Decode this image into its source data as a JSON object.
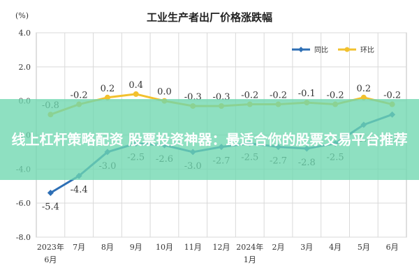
{
  "chart_data": {
    "type": "line",
    "title": "工业生产者出厂价格涨跌幅",
    "unit_label": "(%)",
    "categories": [
      "2023年6月",
      "7月",
      "8月",
      "9月",
      "10月",
      "11月",
      "12月",
      "2024年1月",
      "2月",
      "3月",
      "4月",
      "5月",
      "6月"
    ],
    "category_lines": [
      [
        "2023年",
        "6月"
      ],
      [
        "7月"
      ],
      [
        "8月"
      ],
      [
        "9月"
      ],
      [
        "10月"
      ],
      [
        "11月"
      ],
      [
        "12月"
      ],
      [
        "2024年",
        "1月"
      ],
      [
        "2月"
      ],
      [
        "3月"
      ],
      [
        "4月"
      ],
      [
        "5月"
      ],
      [
        "6月"
      ]
    ],
    "ylim": [
      -8.0,
      4.0
    ],
    "yticks": [
      "4.0",
      "2.0",
      "0.0",
      "-2.0",
      "-4.0",
      "-6.0",
      "-8.0"
    ],
    "ytick_values": [
      4,
      2,
      0,
      -2,
      -4,
      -6,
      -8
    ],
    "grid": true,
    "legend_position": "top-right",
    "series": [
      {
        "name": "同比",
        "color": "#2e6fb5",
        "values": [
          -5.4,
          -4.4,
          -3.0,
          -2.5,
          -2.6,
          -3.0,
          -2.7,
          -2.5,
          -2.7,
          -2.8,
          -2.5,
          -1.4,
          -0.8
        ],
        "labels": [
          "-5.4",
          "-4.4",
          "-3.0",
          "-2.5",
          "-2.6",
          "-3.0",
          "-2.7",
          "-2.5",
          "-2.7",
          "-2.8",
          "-2.5",
          "-1.4",
          "-0.8"
        ]
      },
      {
        "name": "环比",
        "color": "#f2c12e",
        "values": [
          -0.8,
          -0.2,
          0.2,
          0.4,
          0.0,
          -0.3,
          -0.3,
          -0.2,
          -0.2,
          -0.1,
          -0.2,
          0.2,
          -0.2
        ],
        "labels": [
          "-0.8",
          "-0.2",
          "0.2",
          "0.4",
          "0.0",
          "-0.3",
          "-0.3",
          "-0.2",
          "-0.2",
          "-0.1",
          "-0.2",
          "0.2",
          "-0.2"
        ]
      }
    ]
  },
  "overlay": {
    "text": "线上杠杆策略配资 股票投资神器：最适合你的股票交易平台推荐",
    "color": "#6ed7af"
  }
}
